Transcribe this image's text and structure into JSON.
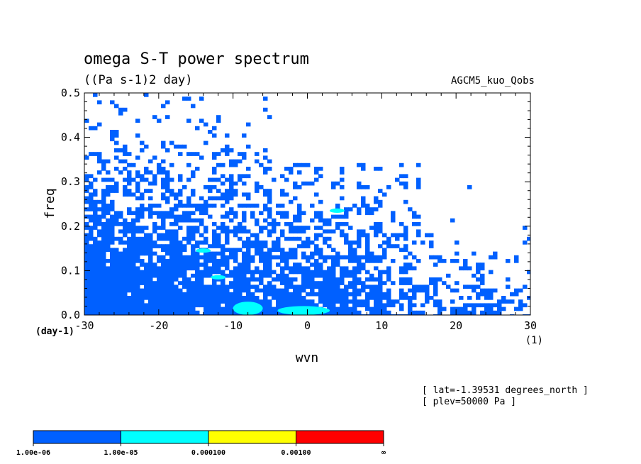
{
  "chart_data": {
    "type": "heatmap",
    "title": "omega S-T power spectrum",
    "units": "((Pa s-1)2 day)",
    "model_label": "AGCM5_kuo_Qobs",
    "xlabel": "wvn",
    "ylabel": "freq",
    "x_unit_label": "(1)",
    "y_unit_label": "(day-1)",
    "xlim": [
      -30,
      30
    ],
    "ylim": [
      0.0,
      0.5
    ],
    "x_ticks": [
      "-30",
      "-20",
      "-10",
      "0",
      "10",
      "20",
      "30"
    ],
    "x_tick_values": [
      -30,
      -20,
      -10,
      0,
      10,
      20,
      30
    ],
    "y_ticks": [
      "0.0",
      "0.1",
      "0.2",
      "0.3",
      "0.4",
      "0.5"
    ],
    "y_tick_values": [
      0.0,
      0.1,
      0.2,
      0.3,
      0.4,
      0.5
    ],
    "info_lines": [
      "[ lat=-1.39531 degrees_north ]",
      "[ plev=50000 Pa ]"
    ],
    "colorbar": {
      "labels": [
        "1.00e-06",
        "1.00e-05",
        "0.000100",
        "0.00100",
        "∞"
      ],
      "colors": [
        "#0060ff",
        "#00ffff",
        "#ffff00",
        "#ff0000"
      ]
    },
    "levels": [
      {
        "name": "1e-06 to 1e-05",
        "color": "#0060ff",
        "regions": [
          {
            "x": [
              -30,
              -20
            ],
            "y": [
              0.0,
              0.1
            ]
          },
          {
            "x": [
              -30,
              -12
            ],
            "y": [
              0.0,
              0.2
            ]
          },
          {
            "x": [
              -30,
              -22
            ],
            "y": [
              0.2,
              0.35
            ]
          },
          {
            "x": [
              -20,
              0
            ],
            "y": [
              0.0,
              0.28
            ]
          },
          {
            "x": [
              0,
              10
            ],
            "y": [
              0.0,
              0.25
            ]
          },
          {
            "x": [
              5,
              15
            ],
            "y": [
              0.0,
              0.12
            ]
          },
          {
            "x": [
              -30,
              -27
            ],
            "y": [
              0.42,
              0.45
            ]
          }
        ]
      },
      {
        "name": "1e-05 to 1e-04",
        "color": "#00ffff",
        "regions": [
          {
            "x": [
              -10,
              -6
            ],
            "y": [
              0.0,
              0.03
            ]
          },
          {
            "x": [
              -4,
              3
            ],
            "y": [
              0.0,
              0.02
            ]
          },
          {
            "x": [
              3,
              5
            ],
            "y": [
              0.23,
              0.24
            ]
          },
          {
            "x": [
              -15,
              -13
            ],
            "y": [
              0.14,
              0.15
            ]
          },
          {
            "x": [
              -13,
              -11
            ],
            "y": [
              0.08,
              0.09
            ]
          }
        ]
      }
    ]
  }
}
